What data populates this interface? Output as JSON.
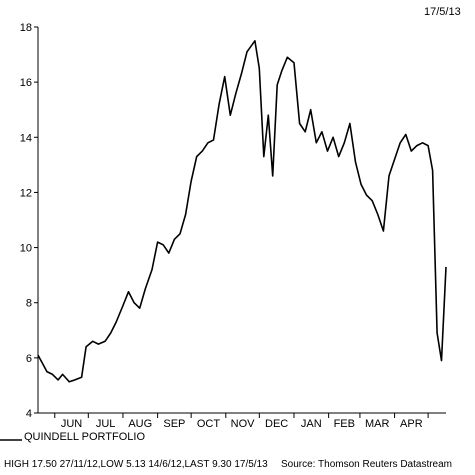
{
  "date_label": "17/5/13",
  "legend": {
    "label": "QUINDELL PORTFOLIO"
  },
  "footer": {
    "stats": "HIGH 17.50 27/11/12,LOW 5.13 14/6/12,LAST 9.30 17/5/13",
    "source": "Source: Thomson Reuters Datastream"
  },
  "chart_data": {
    "type": "line",
    "title": "",
    "xlabel": "",
    "ylabel": "",
    "ylim": [
      4,
      18
    ],
    "yticks": [
      4,
      6,
      8,
      10,
      12,
      14,
      16,
      18
    ],
    "grid": false,
    "legend_position": "bottom-left",
    "months": [
      "JUN",
      "JUL",
      "AUG",
      "SEP",
      "OCT",
      "NOV",
      "DEC",
      "JAN",
      "FEB",
      "MAR",
      "APR"
    ],
    "x_range": [
      "2012-05-17",
      "2013-05-17"
    ],
    "series": [
      {
        "name": "QUINDELL PORTFOLIO",
        "color": "#000000",
        "x": [
          "2012-05-17",
          "2012-05-21",
          "2012-05-25",
          "2012-05-30",
          "2012-06-04",
          "2012-06-08",
          "2012-06-14",
          "2012-06-19",
          "2012-06-25",
          "2012-06-29",
          "2012-07-05",
          "2012-07-10",
          "2012-07-16",
          "2012-07-21",
          "2012-07-26",
          "2012-08-01",
          "2012-08-06",
          "2012-08-11",
          "2012-08-16",
          "2012-08-21",
          "2012-08-27",
          "2012-09-01",
          "2012-09-06",
          "2012-09-11",
          "2012-09-16",
          "2012-09-21",
          "2012-09-26",
          "2012-10-01",
          "2012-10-06",
          "2012-10-11",
          "2012-10-16",
          "2012-10-21",
          "2012-10-26",
          "2012-10-31",
          "2012-11-05",
          "2012-11-10",
          "2012-11-15",
          "2012-11-20",
          "2012-11-27",
          "2012-12-01",
          "2012-12-05",
          "2012-12-09",
          "2012-12-13",
          "2012-12-17",
          "2012-12-21",
          "2012-12-26",
          "2013-01-01",
          "2013-01-06",
          "2013-01-11",
          "2013-01-16",
          "2013-01-21",
          "2013-01-26",
          "2013-01-31",
          "2013-02-05",
          "2013-02-10",
          "2013-02-15",
          "2013-02-20",
          "2013-02-25",
          "2013-03-02",
          "2013-03-07",
          "2013-03-12",
          "2013-03-17",
          "2013-03-22",
          "2013-03-27",
          "2013-04-01",
          "2013-04-06",
          "2013-04-11",
          "2013-04-16",
          "2013-04-21",
          "2013-04-26",
          "2013-05-01",
          "2013-05-05",
          "2013-05-09",
          "2013-05-13",
          "2013-05-17"
        ],
        "values": [
          6.1,
          5.8,
          5.5,
          5.4,
          5.2,
          5.4,
          5.13,
          5.2,
          5.3,
          6.4,
          6.6,
          6.5,
          6.6,
          6.9,
          7.3,
          7.9,
          8.4,
          8.0,
          7.8,
          8.5,
          9.2,
          10.2,
          10.1,
          9.8,
          10.3,
          10.5,
          11.2,
          12.4,
          13.3,
          13.5,
          13.8,
          13.9,
          15.2,
          16.2,
          14.8,
          15.6,
          16.3,
          17.1,
          17.5,
          16.5,
          13.3,
          14.8,
          12.6,
          15.9,
          16.4,
          16.9,
          16.7,
          14.5,
          14.2,
          15.0,
          13.8,
          14.2,
          13.5,
          14.0,
          13.3,
          13.8,
          14.5,
          13.1,
          12.3,
          11.9,
          11.7,
          11.2,
          10.6,
          12.6,
          13.2,
          13.8,
          14.1,
          13.5,
          13.7,
          13.8,
          13.7,
          12.8,
          6.9,
          5.9,
          9.3
        ]
      }
    ]
  }
}
